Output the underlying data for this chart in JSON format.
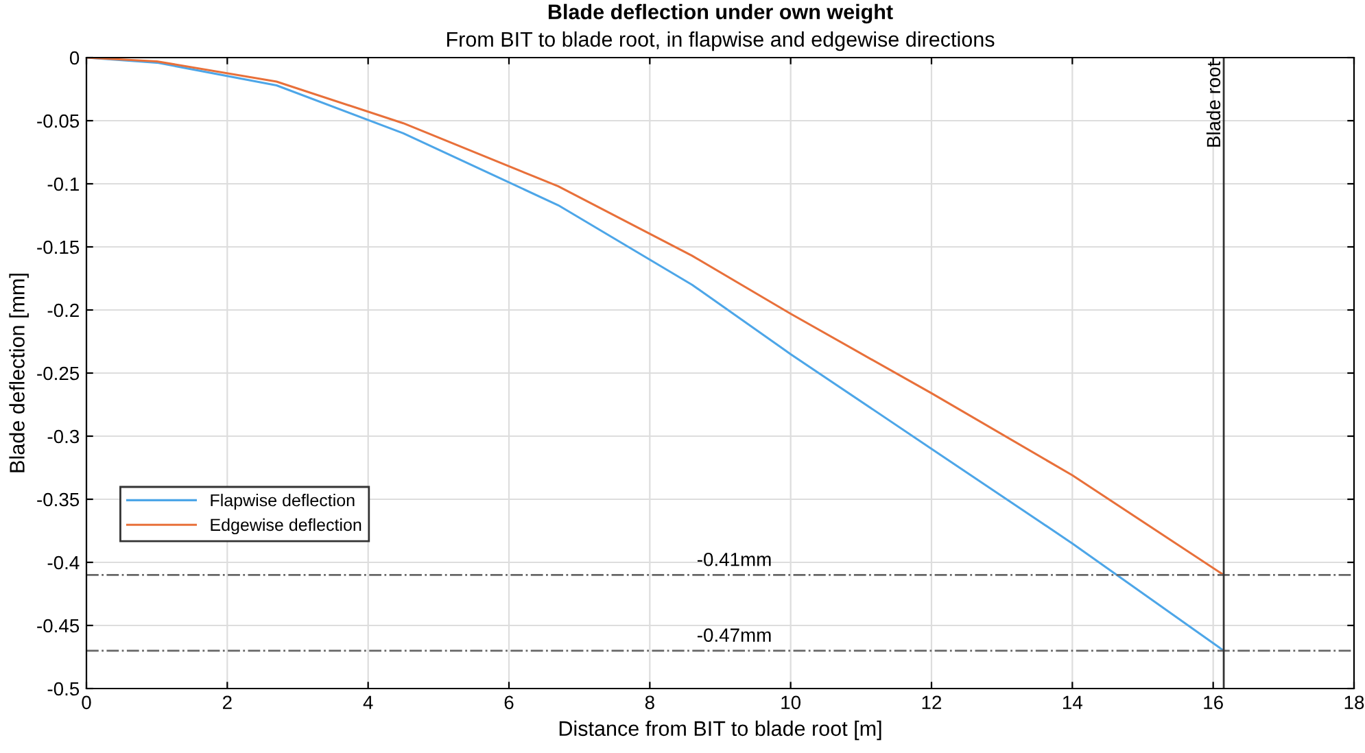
{
  "chart_data": {
    "type": "line",
    "title": "Blade deflection under own weight",
    "subtitle": "From BIT to blade root, in flapwise and edgewise directions",
    "xlabel": "Distance from BIT to blade root [m]",
    "ylabel": "Blade deflection [mm]",
    "series": [
      {
        "name": "Flapwise deflection",
        "color": "#4da6e8",
        "x": [
          0,
          1.0,
          2.7,
          4.5,
          6.7,
          8.6,
          10,
          12,
          14,
          16.15
        ],
        "values": [
          0,
          -0.004,
          -0.022,
          -0.06,
          -0.117,
          -0.18,
          -0.235,
          -0.31,
          -0.385,
          -0.47
        ]
      },
      {
        "name": "Edgewise deflection",
        "color": "#e8703a",
        "x": [
          0,
          1.0,
          2.7,
          4.5,
          6.7,
          8.6,
          10,
          12,
          14,
          16.15
        ],
        "values": [
          0,
          -0.003,
          -0.019,
          -0.052,
          -0.102,
          -0.157,
          -0.203,
          -0.266,
          -0.331,
          -0.41
        ]
      }
    ],
    "xlim": [
      0,
      18
    ],
    "xticks": [
      0,
      2,
      4,
      6,
      8,
      10,
      12,
      14,
      16,
      18
    ],
    "ylim": [
      -0.5,
      0
    ],
    "yticks": [
      -0.5,
      -0.45,
      -0.4,
      -0.35,
      -0.3,
      -0.25,
      -0.2,
      -0.15,
      -0.1,
      -0.05,
      0
    ],
    "ref_lines": [
      {
        "axis": "y",
        "value": -0.41,
        "label": "-0.41mm",
        "color": "#666666",
        "line_style": "dashdot"
      },
      {
        "axis": "y",
        "value": -0.47,
        "label": "-0.47mm",
        "color": "#666666",
        "line_style": "dashdot"
      },
      {
        "axis": "x",
        "value": 16.15,
        "label": "Blade root",
        "color": "#333333",
        "line_style": "solid"
      }
    ],
    "grid": true,
    "legend": "bottom left",
    "marker": "none",
    "line_style": "solid"
  }
}
